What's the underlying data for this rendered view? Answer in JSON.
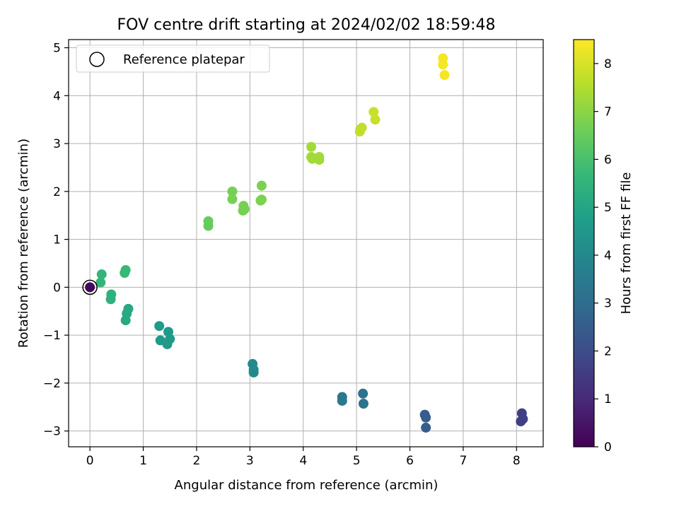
{
  "chart_data": {
    "type": "scatter",
    "title": "FOV centre drift starting at 2024/02/02 18:59:48",
    "xlabel": "Angular distance from reference (arcmin)",
    "ylabel": "Rotation from reference (arcmin)",
    "xlim": [
      -0.4,
      8.5
    ],
    "ylim": [
      -3.33,
      5.17
    ],
    "xticks": [
      0,
      1,
      2,
      3,
      4,
      5,
      6,
      7,
      8
    ],
    "yticks": [
      -3,
      -2,
      -1,
      0,
      1,
      2,
      3,
      4,
      5
    ],
    "grid": true,
    "legend": {
      "position": "top-left",
      "entries": [
        "Reference platepar"
      ]
    },
    "reference_point": {
      "x": 0,
      "y": 0
    },
    "colorbar": {
      "label": "Hours from first FF file",
      "range": [
        0,
        8.5
      ],
      "ticks": [
        0,
        1,
        2,
        3,
        4,
        5,
        6,
        7,
        8
      ],
      "colormap": "viridis",
      "stops": [
        "#440154",
        "#482878",
        "#3e4989",
        "#31688e",
        "#26828e",
        "#1f9e89",
        "#35b779",
        "#6ece58",
        "#b5de2b",
        "#fde725"
      ]
    },
    "points": [
      {
        "x": 0.0,
        "y": 0.0,
        "c": 0.2
      },
      {
        "x": 8.1,
        "y": -2.63,
        "c": 1.6
      },
      {
        "x": 8.12,
        "y": -2.75,
        "c": 1.6
      },
      {
        "x": 8.08,
        "y": -2.8,
        "c": 1.6
      },
      {
        "x": 6.28,
        "y": -2.66,
        "c": 2.5
      },
      {
        "x": 6.3,
        "y": -2.72,
        "c": 2.5
      },
      {
        "x": 6.3,
        "y": -2.93,
        "c": 2.5
      },
      {
        "x": 5.12,
        "y": -2.22,
        "c": 3.2
      },
      {
        "x": 5.13,
        "y": -2.43,
        "c": 3.2
      },
      {
        "x": 4.73,
        "y": -2.29,
        "c": 3.4
      },
      {
        "x": 4.73,
        "y": -2.37,
        "c": 3.4
      },
      {
        "x": 3.05,
        "y": -1.6,
        "c": 4.0
      },
      {
        "x": 3.07,
        "y": -1.72,
        "c": 4.0
      },
      {
        "x": 3.07,
        "y": -1.78,
        "c": 4.0
      },
      {
        "x": 1.47,
        "y": -0.93,
        "c": 4.6
      },
      {
        "x": 1.5,
        "y": -1.08,
        "c": 4.6
      },
      {
        "x": 1.45,
        "y": -1.19,
        "c": 4.6
      },
      {
        "x": 1.32,
        "y": -1.11,
        "c": 4.6
      },
      {
        "x": 1.3,
        "y": -0.81,
        "c": 4.6
      },
      {
        "x": 0.72,
        "y": -0.45,
        "c": 5.1
      },
      {
        "x": 0.69,
        "y": -0.55,
        "c": 5.1
      },
      {
        "x": 0.67,
        "y": -0.69,
        "c": 5.1
      },
      {
        "x": 0.4,
        "y": -0.15,
        "c": 5.4
      },
      {
        "x": 0.39,
        "y": -0.25,
        "c": 5.4
      },
      {
        "x": 0.22,
        "y": 0.27,
        "c": 5.6
      },
      {
        "x": 0.2,
        "y": 0.1,
        "c": 5.6
      },
      {
        "x": 0.65,
        "y": 0.3,
        "c": 5.7
      },
      {
        "x": 0.67,
        "y": 0.36,
        "c": 5.7
      },
      {
        "x": 2.22,
        "y": 1.38,
        "c": 6.5
      },
      {
        "x": 2.22,
        "y": 1.28,
        "c": 6.5
      },
      {
        "x": 2.67,
        "y": 2.0,
        "c": 6.7
      },
      {
        "x": 2.67,
        "y": 1.84,
        "c": 6.7
      },
      {
        "x": 2.88,
        "y": 1.7,
        "c": 6.7
      },
      {
        "x": 2.9,
        "y": 1.63,
        "c": 6.7
      },
      {
        "x": 2.87,
        "y": 1.6,
        "c": 6.7
      },
      {
        "x": 3.22,
        "y": 2.12,
        "c": 6.8
      },
      {
        "x": 3.22,
        "y": 1.83,
        "c": 6.8
      },
      {
        "x": 3.2,
        "y": 1.81,
        "c": 6.8
      },
      {
        "x": 4.15,
        "y": 2.93,
        "c": 7.3
      },
      {
        "x": 4.15,
        "y": 2.72,
        "c": 7.3
      },
      {
        "x": 4.17,
        "y": 2.68,
        "c": 7.3
      },
      {
        "x": 4.3,
        "y": 2.72,
        "c": 7.3
      },
      {
        "x": 4.3,
        "y": 2.66,
        "c": 7.3
      },
      {
        "x": 5.07,
        "y": 3.3,
        "c": 7.7
      },
      {
        "x": 5.1,
        "y": 3.33,
        "c": 7.7
      },
      {
        "x": 5.06,
        "y": 3.25,
        "c": 7.7
      },
      {
        "x": 5.32,
        "y": 3.66,
        "c": 7.8
      },
      {
        "x": 5.35,
        "y": 3.5,
        "c": 7.8
      },
      {
        "x": 6.62,
        "y": 4.78,
        "c": 8.4
      },
      {
        "x": 6.62,
        "y": 4.65,
        "c": 8.4
      },
      {
        "x": 6.65,
        "y": 4.43,
        "c": 8.4
      }
    ]
  }
}
